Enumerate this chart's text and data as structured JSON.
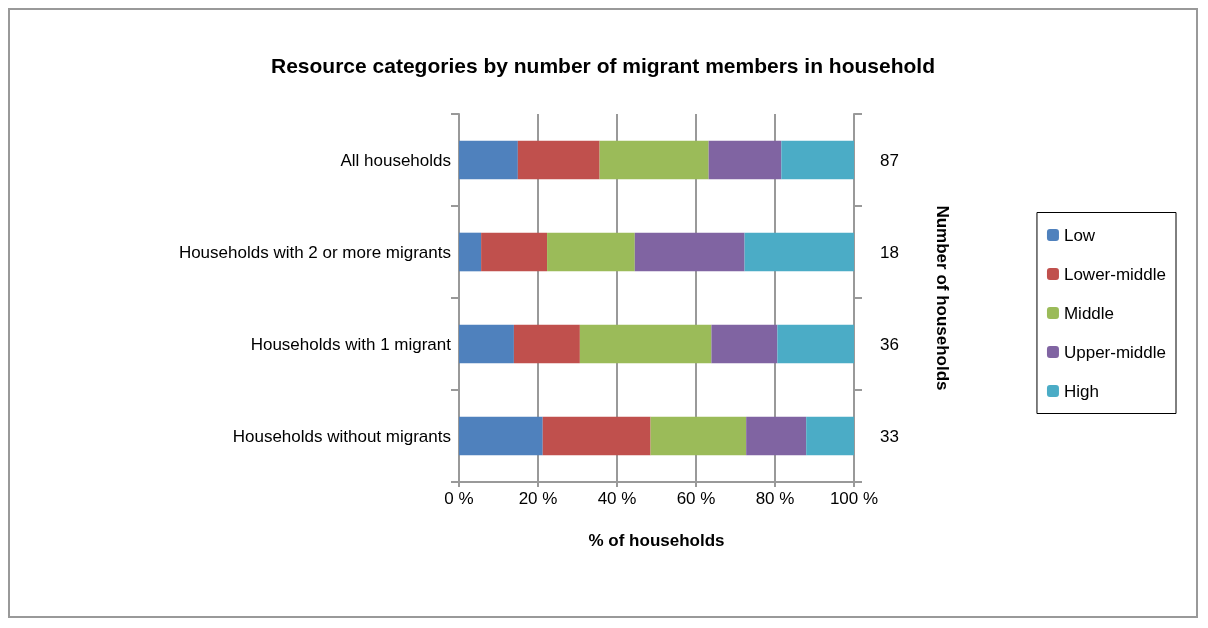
{
  "chart_data": {
    "type": "bar",
    "orientation": "horizontal",
    "stacked": true,
    "title": "Resource categories by number of migrant members in household",
    "xlabel": "% of households",
    "y2label": "Number of households",
    "categories": [
      "All households",
      "Households with 2 or more migrants",
      "Households with 1 migrant",
      "Households without migrants"
    ],
    "y2_categories": [
      "87",
      "18",
      "36",
      "33"
    ],
    "series": [
      {
        "name": "Low",
        "color": "#4f81bd",
        "values": [
          14.9,
          5.6,
          13.9,
          21.2
        ]
      },
      {
        "name": "Lower-middle",
        "color": "#c0504d",
        "values": [
          20.7,
          16.7,
          16.7,
          27.3
        ]
      },
      {
        "name": "Middle",
        "color": "#9bbb59",
        "values": [
          27.6,
          22.2,
          33.3,
          24.2
        ]
      },
      {
        "name": "Upper-middle",
        "color": "#8064a2",
        "values": [
          18.4,
          27.8,
          16.7,
          15.2
        ]
      },
      {
        "name": "High",
        "color": "#4bacc6",
        "values": [
          18.4,
          27.8,
          19.4,
          12.1
        ]
      }
    ],
    "xlim": [
      0,
      100
    ],
    "xticks": [
      {
        "value": 0,
        "label": "0 %"
      },
      {
        "value": 20,
        "label": "20 %"
      },
      {
        "value": 40,
        "label": "40 %"
      },
      {
        "value": 60,
        "label": "60 %"
      },
      {
        "value": 80,
        "label": "80 %"
      },
      {
        "value": 100,
        "label": "100 %"
      }
    ],
    "grid": "x",
    "legend": "right"
  }
}
